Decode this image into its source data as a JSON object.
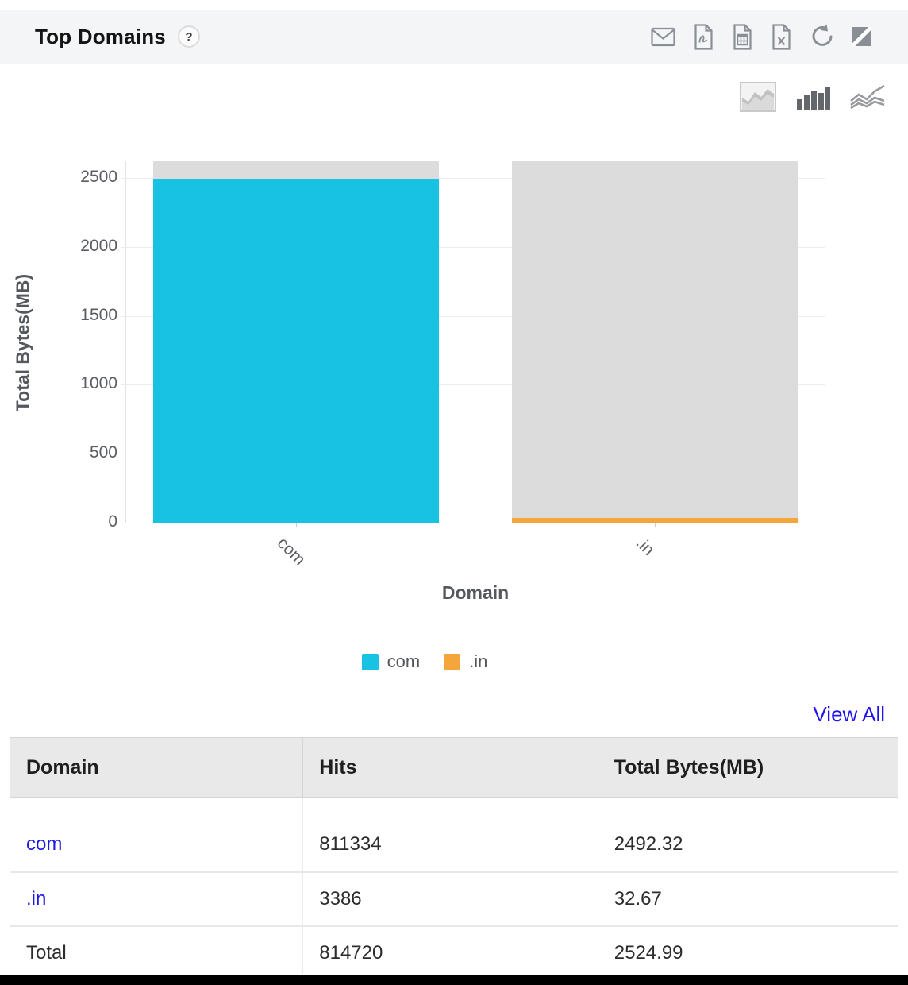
{
  "widget": {
    "title": "Top Domains",
    "help_label": "?",
    "view_all_label": "View All"
  },
  "toolbar": {
    "icons": [
      "email-icon",
      "pdf-export-icon",
      "csv-export-icon",
      "excel-export-icon",
      "refresh-icon",
      "expand-icon"
    ]
  },
  "chart_toolbar": {
    "options": [
      "area-chart",
      "bar-chart",
      "line-chart"
    ],
    "active": "bar-chart"
  },
  "chart_data": {
    "type": "bar",
    "title": "",
    "xlabel": "Domain",
    "ylabel": "Total Bytes(MB)",
    "categories": [
      "com",
      ".in"
    ],
    "values": [
      2492.32,
      32.67
    ],
    "colors": [
      "#18c2e2",
      "#f4a63c"
    ],
    "column_background_color": "#dcdcdc",
    "ylim": [
      0,
      2620
    ],
    "yticks": [
      0,
      500,
      1000,
      1500,
      2000,
      2500
    ],
    "grid": true,
    "legend": [
      {
        "label": "com",
        "color": "#18c2e2"
      },
      {
        "label": ".in",
        "color": "#f4a63c"
      }
    ],
    "legend_position": "bottom"
  },
  "table": {
    "headers": [
      "Domain",
      "Hits",
      "Total Bytes(MB)"
    ],
    "rows": [
      {
        "domain": "com",
        "hits": "811334",
        "total_bytes": "2492.32",
        "link": true
      },
      {
        "domain": ".in",
        "hits": "3386",
        "total_bytes": "32.67",
        "link": true
      },
      {
        "domain": "Total",
        "hits": "814720",
        "total_bytes": "2524.99",
        "link": false
      }
    ]
  },
  "colors": {
    "accent_cyan": "#18c2e2",
    "accent_orange": "#f4a63c",
    "link_blue": "#2113f0",
    "titlebar_bg": "#f4f5f7",
    "table_header_bg": "#e9e9e9",
    "column_bg": "#dcdcdc"
  }
}
